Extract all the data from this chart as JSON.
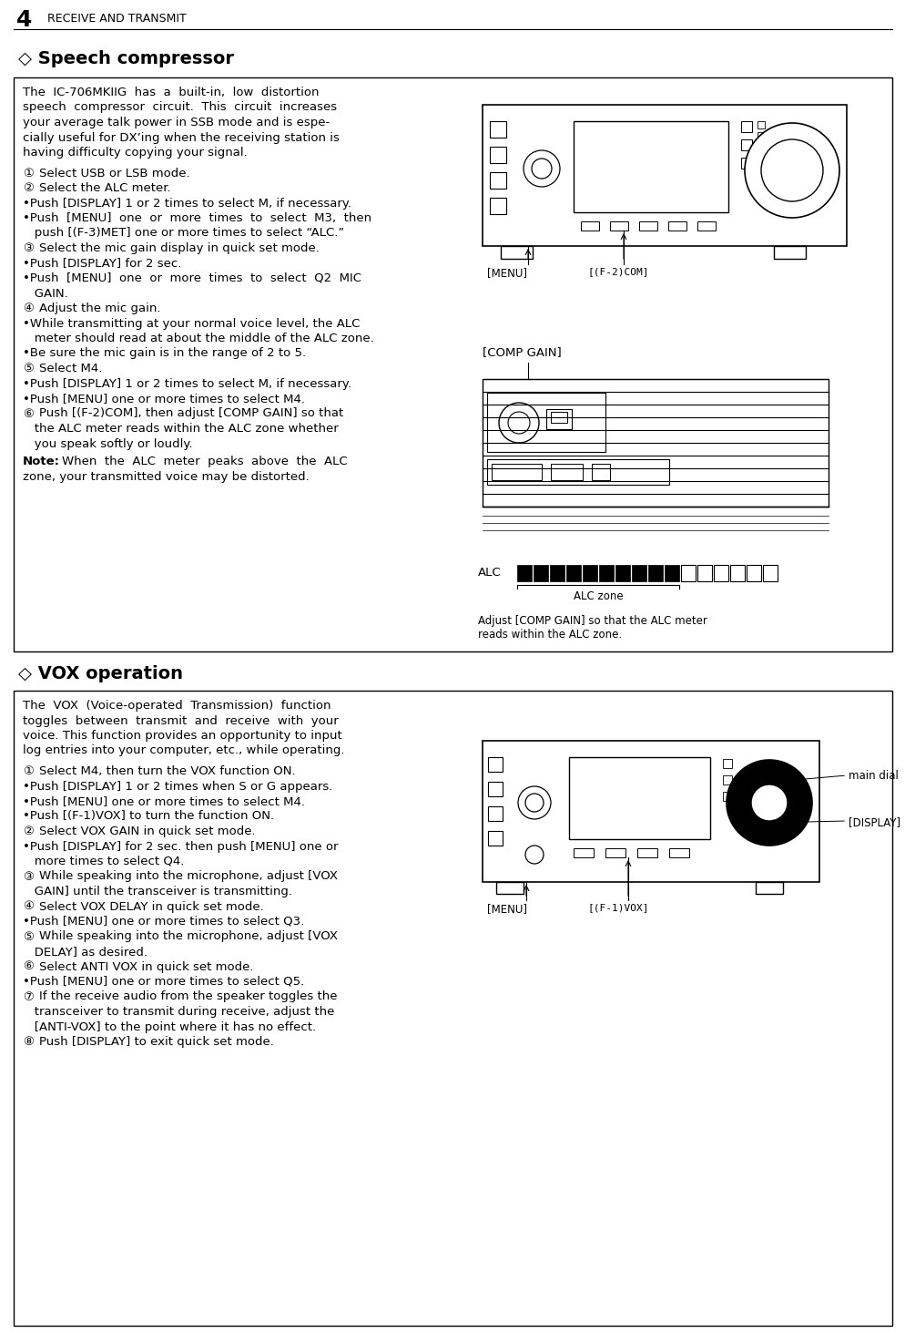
{
  "bg_color": "#ffffff",
  "text_color": "#000000",
  "page_num": "4",
  "page_title": "RECEIVE AND TRANSMIT",
  "sec1_title": "◇ Speech compressor",
  "sec1_intro": [
    "The  IC-706MKIIG  has  a  built-in,  low  distortion",
    "speech  compressor  circuit.  This  circuit  increases",
    "your average talk power in SSB mode and is espe-",
    "cially useful for DX’ing when the receiving station is",
    "having difficulty copying your signal."
  ],
  "sec1_steps": [
    [
      "①",
      "Select USB or LSB mode."
    ],
    [
      "②",
      "Select the ALC meter."
    ],
    [
      "",
      "•Push [DISPLAY] 1 or 2 times to select M, if necessary."
    ],
    [
      "",
      "•Push  [MENU]  one  or  more  times  to  select  M3,  then"
    ],
    [
      "",
      "   push [(F-3)MET] one or more times to select “ALC.”"
    ],
    [
      "③",
      "Select the mic gain display in quick set mode."
    ],
    [
      "",
      "•Push [DISPLAY] for 2 sec."
    ],
    [
      "",
      "•Push  [MENU]  one  or  more  times  to  select  Q2  MIC"
    ],
    [
      "",
      "   GAIN."
    ],
    [
      "④",
      "Adjust the mic gain."
    ],
    [
      "",
      "•While transmitting at your normal voice level, the ALC"
    ],
    [
      "",
      "   meter should read at about the middle of the ALC zone."
    ],
    [
      "",
      "•Be sure the mic gain is in the range of 2 to 5."
    ],
    [
      "⑤",
      "Select M4."
    ],
    [
      "",
      "•Push [DISPLAY] 1 or 2 times to select M, if necessary."
    ],
    [
      "",
      "•Push [MENU] one or more times to select M4."
    ],
    [
      "⑥",
      "Push [(F-2)COM], then adjust [COMP GAIN] so that"
    ],
    [
      "",
      "   the ALC meter reads within the ALC zone whether"
    ],
    [
      "",
      "   you speak softly or loudly."
    ]
  ],
  "sec1_note": [
    "Note:",
    "When  the  ALC  meter  peaks  above  the  ALC",
    "zone, your transmitted voice may be distorted."
  ],
  "sec2_title": "◇ VOX operation",
  "sec2_intro": [
    "The  VOX  (Voice-operated  Transmission)  function",
    "toggles  between  transmit  and  receive  with  your",
    "voice. This function provides an opportunity to input",
    "log entries into your computer, etc., while operating."
  ],
  "sec2_steps": [
    [
      "①",
      "Select M4, then turn the VOX function ON."
    ],
    [
      "",
      "•Push [DISPLAY] 1 or 2 times when S or G appears."
    ],
    [
      "",
      "•Push [MENU] one or more times to select M4."
    ],
    [
      "",
      "•Push [(F-1)VOX] to turn the function ON."
    ],
    [
      "②",
      "Select VOX GAIN in quick set mode."
    ],
    [
      "",
      "•Push [DISPLAY] for 2 sec. then push [MENU] one or"
    ],
    [
      "",
      "   more times to select Q4."
    ],
    [
      "③",
      "While speaking into the microphone, adjust [VOX"
    ],
    [
      "",
      "   GAIN] until the transceiver is transmitting."
    ],
    [
      "④",
      "Select VOX DELAY in quick set mode."
    ],
    [
      "",
      "•Push [MENU] one or more times to select Q3."
    ],
    [
      "⑤",
      "While speaking into the microphone, adjust [VOX"
    ],
    [
      "",
      "   DELAY] as desired."
    ],
    [
      "⑥",
      "Select ANTI VOX in quick set mode."
    ],
    [
      "",
      "•Push [MENU] one or more times to select Q5."
    ],
    [
      "⑦",
      "If the receive audio from the speaker toggles the"
    ],
    [
      "",
      "   transceiver to transmit during receive, adjust the"
    ],
    [
      "",
      "   [ANTI-VOX] to the point where it has no effect."
    ],
    [
      "⑧",
      "Push [DISPLAY] to exit quick set mode."
    ]
  ]
}
